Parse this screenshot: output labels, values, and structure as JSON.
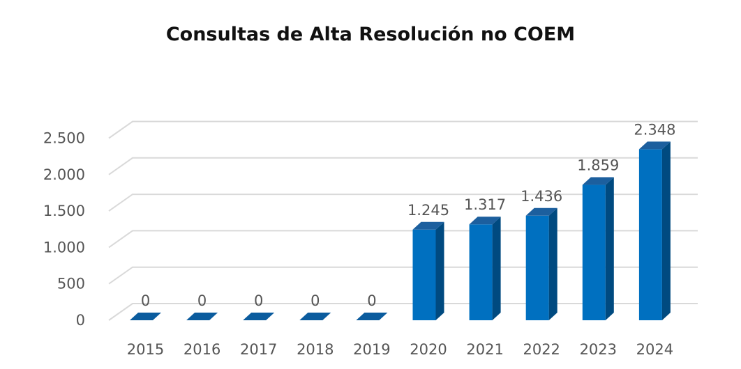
{
  "chart_data": {
    "type": "bar",
    "title": "Consultas de Alta Resolución no COEM",
    "categories": [
      "2015",
      "2016",
      "2017",
      "2018",
      "2019",
      "2020",
      "2021",
      "2022",
      "2023",
      "2024"
    ],
    "values": [
      0,
      0,
      0,
      0,
      0,
      1245,
      1317,
      1436,
      1859,
      2348
    ],
    "value_labels": [
      "0",
      "0",
      "0",
      "0",
      "0",
      "1.245",
      "1.317",
      "1.436",
      "1.859",
      "2.348"
    ],
    "y_ticks": [
      0,
      500,
      1000,
      1500,
      2000,
      2500
    ],
    "y_tick_labels": [
      "0",
      "500",
      "1.000",
      "1.500",
      "2.000",
      "2.500"
    ],
    "ylim": [
      0,
      2500
    ],
    "style": "3d-column",
    "grid": true,
    "legend": "none",
    "colors": {
      "bar_front": "#0070C0",
      "bar_side": "#004A80",
      "bar_top": "#1C5F9E",
      "gridline": "#D9D9D9",
      "text": "#555555"
    }
  }
}
